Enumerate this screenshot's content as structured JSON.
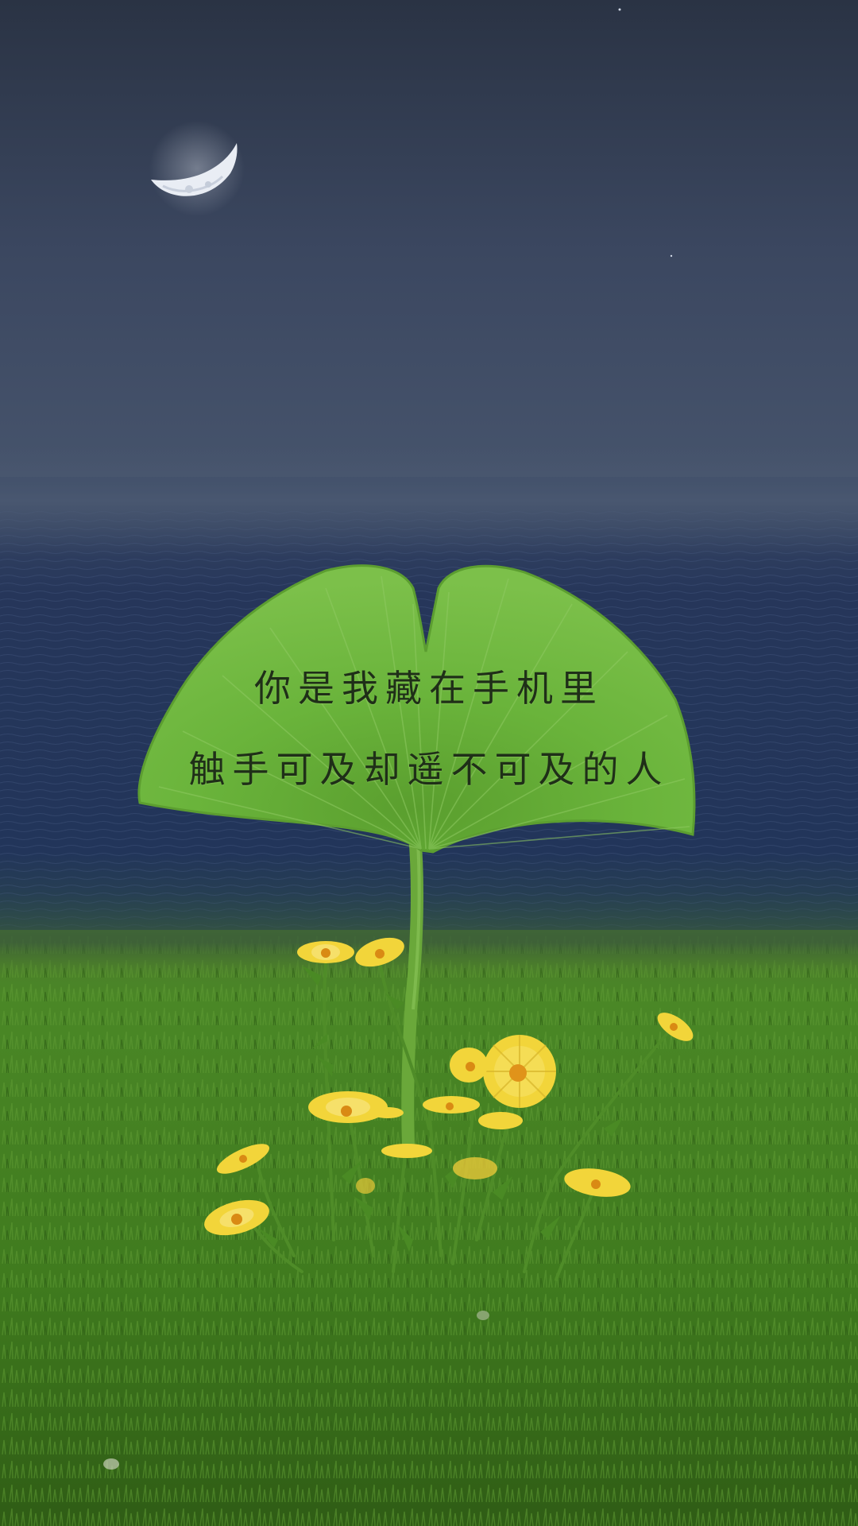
{
  "quote": {
    "line1": "你是我藏在手机里",
    "line2": "触手可及却遥不可及的人"
  },
  "colors": {
    "sky_top": "#2b3546",
    "sky_mid": "#3f4d66",
    "fog": "#4a5870",
    "sea": "#27385a",
    "grass": "#3f7a1e",
    "leaf": "#68b23a",
    "flower": "#f2d53a",
    "text": "#1f2f18"
  },
  "elements": [
    "moon",
    "sea",
    "ginkgo-leaf",
    "yellow-flowers",
    "grass"
  ]
}
